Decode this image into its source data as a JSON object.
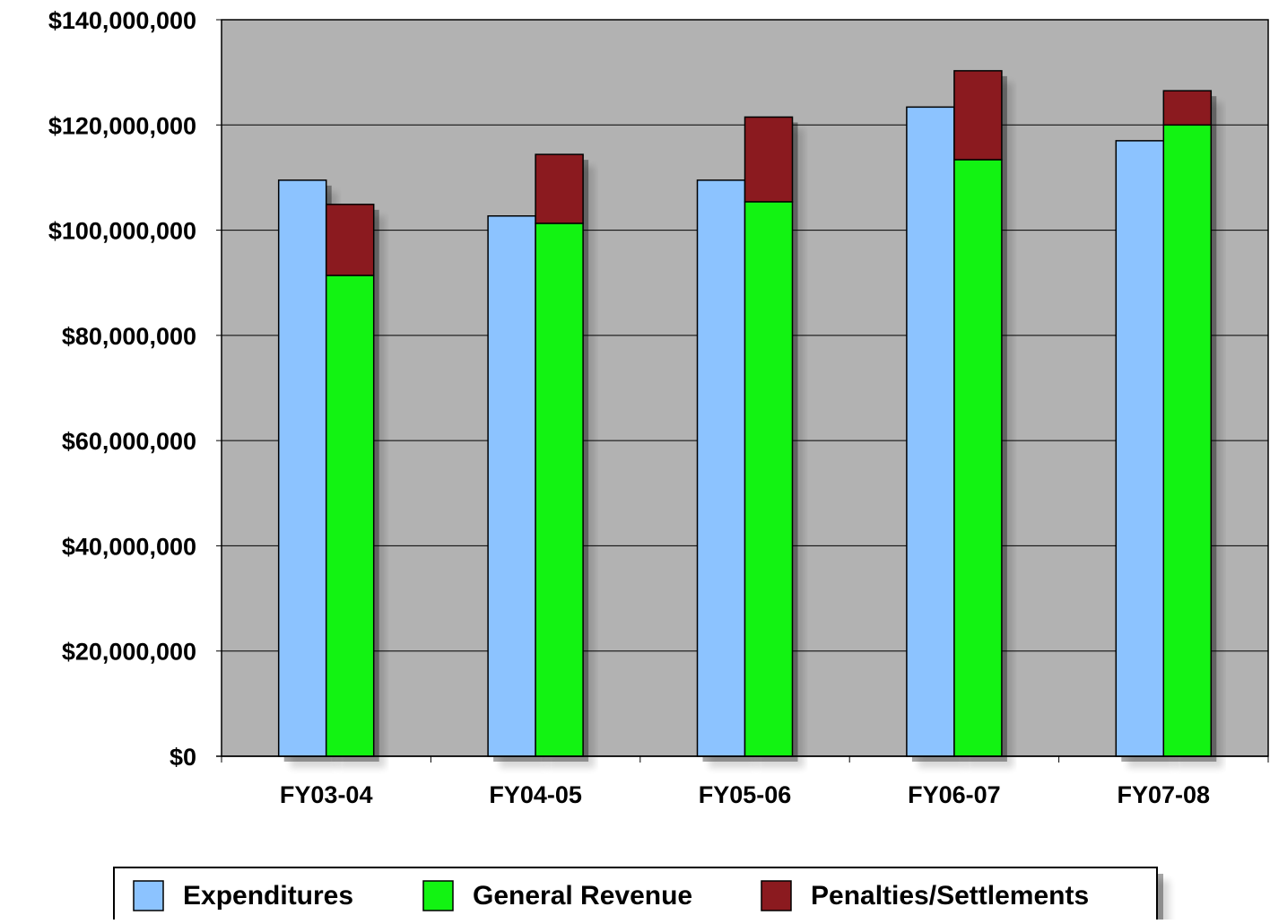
{
  "chart_data": {
    "type": "bar",
    "title": "",
    "xlabel": "",
    "ylabel": "",
    "categories": [
      "FY03-04",
      "FY04-05",
      "FY05-06",
      "FY06-07",
      "FY07-08"
    ],
    "ylim": [
      0,
      140000000
    ],
    "yticks": [
      0,
      20000000,
      40000000,
      60000000,
      80000000,
      100000000,
      120000000,
      140000000
    ],
    "ytick_labels": [
      "$0",
      "$20,000,000",
      "$40,000,000",
      "$60,000,000",
      "$80,000,000",
      "$100,000,000",
      "$120,000,000",
      "$140,000,000"
    ],
    "grid": true,
    "legend_position": "bottom",
    "plot_background": "#b2b2b2",
    "series": [
      {
        "name": "Expenditures",
        "stack": "a",
        "color": "#8cc3ff",
        "values": [
          109500000,
          102700000,
          109500000,
          123400000,
          117000000
        ]
      },
      {
        "name": "General Revenue",
        "stack": "b",
        "color": "#12f312",
        "values": [
          91400000,
          101300000,
          105400000,
          113400000,
          120000000
        ]
      },
      {
        "name": "Penalties/Settlements",
        "stack": "b",
        "color": "#8b1a1f",
        "values": [
          13500000,
          13100000,
          16100000,
          16900000,
          6500000
        ]
      }
    ]
  }
}
